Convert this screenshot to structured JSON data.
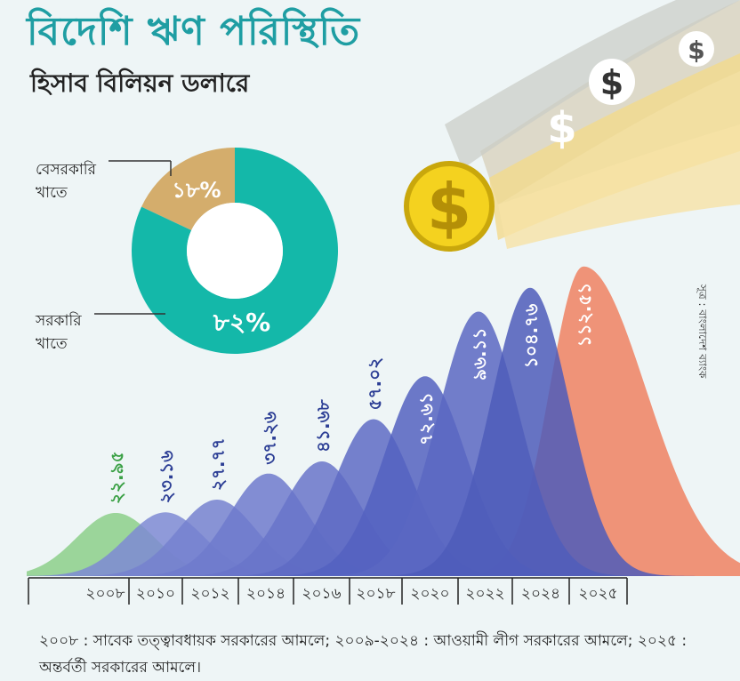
{
  "header": {
    "title": "বিদেশি ঋণ পরিস্থিতি",
    "subtitle": "হিসাব বিলিয়ন ডলারে"
  },
  "source": "সূত্র : বাংলাদেশ ব্যাংক",
  "footnote": "২০০৮ : সাবেক তত্ত্বাবধায়ক সরকারের আমলে; ২০০৯-২০২৪ : আওয়ামী লীগ সরকারের আমলে; ২০২৫ : অন্তর্বর্তী সরকারের আমলে।",
  "colors": {
    "teal": "#14b8a9",
    "tan": "#d4ad6c",
    "green": "#8ccf8a",
    "blue_light": "#9aa5e0",
    "blue_dark": "#3f4fb0",
    "orange": "#ef8a6c",
    "label_green": "#3aa045",
    "label_blue": "#2c3e95"
  },
  "chart_data": [
    {
      "type": "pie",
      "donut": true,
      "labels": [
        "বেসরকারি খাতে",
        "সরকারি খাতে"
      ],
      "values": [
        18,
        82
      ],
      "value_labels": [
        "১৮%",
        "৮২%"
      ],
      "colors": [
        "#d4ad6c",
        "#14b8a9"
      ]
    },
    {
      "type": "area",
      "categories": [
        "২০০৮",
        "২০১০",
        "২০১২",
        "২০১৪",
        "২০১৬",
        "২০১৮",
        "২০২০",
        "২০২২",
        "২০২৪",
        "২০২৫"
      ],
      "values": [
        22.95,
        23.16,
        27.77,
        37.26,
        41.68,
        57.02,
        72.61,
        96.11,
        104.76,
        112.51
      ],
      "value_labels": [
        "২২.৯৫",
        "২৩.১৬",
        "২৭.৭৭",
        "৩৭.২৬",
        "৪১.৬৮",
        "৫৭.০২",
        "৭২.৬১",
        "৯৬.১১",
        "১০৪.৭৬",
        "১১২.৫১"
      ]
    }
  ]
}
